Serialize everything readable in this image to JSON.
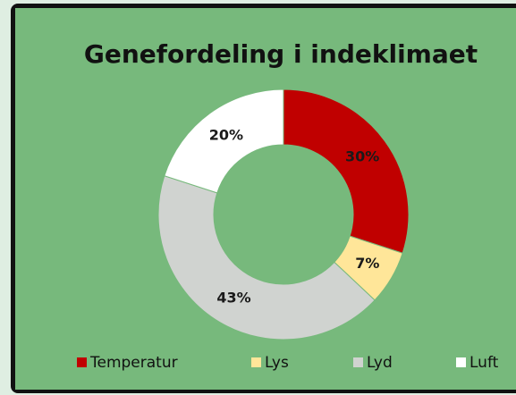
{
  "chart_data": {
    "type": "pie",
    "donut": true,
    "title": "Genefordeling i indeklimaet",
    "categories": [
      "Temperatur",
      "Lys",
      "Lyd",
      "Luft"
    ],
    "values": [
      30,
      7,
      43,
      20
    ],
    "value_labels": [
      "30%",
      "7%",
      "43%",
      "20%"
    ],
    "colors": [
      "#c00000",
      "#ffe699",
      "#d0d3d0",
      "#ffffff"
    ],
    "legend": "bottom"
  }
}
